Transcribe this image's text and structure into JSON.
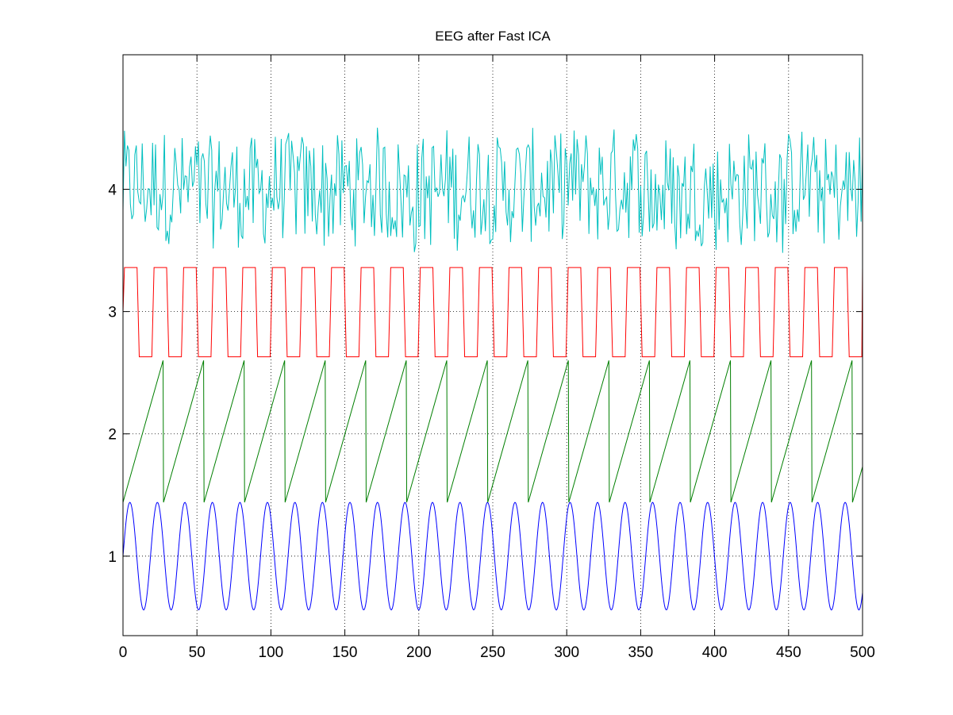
{
  "chart_data": {
    "type": "line",
    "title": "EEG after Fast ICA",
    "xlabel": "",
    "ylabel": "",
    "xlim": [
      0,
      500
    ],
    "ylim": [
      0.35,
      5.1
    ],
    "grid": true,
    "legend": "none",
    "x_ticks": [
      "0",
      "50",
      "100",
      "150",
      "200",
      "250",
      "300",
      "350",
      "400",
      "450",
      "500"
    ],
    "y_ticks": [
      "1",
      "2",
      "3",
      "4"
    ],
    "x_tick_values": [
      0,
      50,
      100,
      150,
      200,
      250,
      300,
      350,
      400,
      450,
      500
    ],
    "y_tick_values": [
      1,
      2,
      3,
      4
    ],
    "series": [
      {
        "kind": "sine",
        "color": "#0000ff",
        "offset": 1.0,
        "amplitude": 0.44,
        "period": 18.6,
        "x": [
          0,
          500
        ]
      },
      {
        "kind": "sawtooth",
        "color": "#007f00",
        "offset": 2.02,
        "min": 1.44,
        "max": 2.6,
        "period": 27.1,
        "x": [
          0,
          500
        ]
      },
      {
        "kind": "square",
        "color": "#ff0000",
        "high": 3.36,
        "low": 2.63,
        "period": 20.0,
        "x": [
          0,
          500
        ]
      },
      {
        "kind": "noise",
        "color": "#00bfbf",
        "offset": 4.0,
        "min": 3.38,
        "max": 4.62,
        "x": [
          0,
          500
        ]
      }
    ]
  }
}
